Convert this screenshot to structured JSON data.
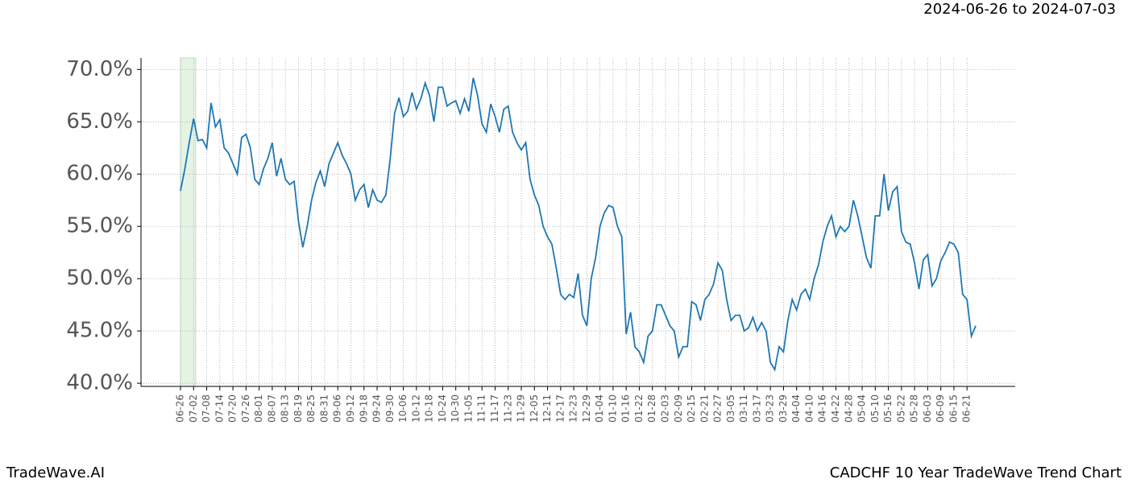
{
  "chart_data": {
    "type": "line",
    "title": "2024-06-26 to 2024-07-03",
    "footer_left": "TradeWave.AI",
    "footer_right": "CADCHF 10 Year TradeWave Trend Chart",
    "categories": [
      "06-26",
      null,
      null,
      "07-02",
      null,
      null,
      "07-08",
      null,
      null,
      "07-14",
      null,
      null,
      "07-20",
      null,
      null,
      "07-26",
      null,
      null,
      "08-01",
      null,
      null,
      "08-07",
      null,
      null,
      "08-13",
      null,
      null,
      "08-19",
      null,
      null,
      "08-25",
      null,
      null,
      "08-31",
      null,
      null,
      "09-06",
      null,
      null,
      "09-12",
      null,
      null,
      "09-18",
      null,
      null,
      "09-24",
      null,
      null,
      "09-30",
      null,
      null,
      "10-06",
      null,
      null,
      "10-12",
      null,
      null,
      "10-18",
      null,
      null,
      "10-24",
      null,
      null,
      "10-30",
      null,
      null,
      "11-05",
      null,
      null,
      "11-11",
      null,
      null,
      "11-17",
      null,
      null,
      "11-23",
      null,
      null,
      "11-29",
      null,
      null,
      "12-05",
      null,
      null,
      "12-11",
      null,
      null,
      "12-17",
      null,
      null,
      "12-23",
      null,
      null,
      "12-29",
      null,
      null,
      "01-04",
      null,
      null,
      "01-10",
      null,
      null,
      "01-16",
      null,
      null,
      "01-22",
      null,
      null,
      "01-28",
      null,
      null,
      "02-03",
      null,
      null,
      "02-09",
      null,
      null,
      "02-15",
      null,
      null,
      "02-21",
      null,
      null,
      "02-27",
      null,
      null,
      "03-05",
      null,
      null,
      "03-11",
      null,
      null,
      "03-17",
      null,
      null,
      "03-23",
      null,
      null,
      "03-29",
      null,
      null,
      "04-04",
      null,
      null,
      "04-10",
      null,
      null,
      "04-16",
      null,
      null,
      "04-22",
      null,
      null,
      "04-28",
      null,
      null,
      "05-04",
      null,
      null,
      "05-10",
      null,
      null,
      "05-16",
      null,
      null,
      "05-22",
      null,
      null,
      "05-28",
      null,
      null,
      "06-03",
      null,
      null,
      "06-09",
      null,
      null,
      "06-15",
      null,
      null,
      "06-21",
      null,
      null
    ],
    "series": [
      {
        "color": "#1f77b4",
        "values": [
          58.4,
          60.5,
          63,
          65.3,
          63.2,
          63.3,
          62.5,
          66.8,
          64.5,
          65.2,
          62.5,
          62,
          61,
          60,
          63.5,
          63.8,
          62.5,
          59.5,
          59,
          60.5,
          61.5,
          63,
          59.8,
          61.5,
          59.5,
          59,
          59.3,
          55.5,
          53,
          55,
          57.5,
          59.2,
          60.3,
          58.8,
          61,
          62,
          63,
          61.8,
          61,
          60,
          57.5,
          58.5,
          59,
          56.8,
          58.5,
          57.5,
          57.3,
          58,
          61.5,
          65.8,
          67.3,
          65.5,
          66,
          67.8,
          66.2,
          67.2,
          68.7,
          67.5,
          65,
          68.3,
          68.3,
          66.5,
          66.8,
          67,
          65.8,
          67.2,
          66,
          69.2,
          67.5,
          64.8,
          64,
          66.7,
          65.5,
          64,
          66.2,
          66.5,
          64,
          63,
          62.3,
          63,
          59.5,
          58,
          57,
          55,
          54,
          53.3,
          51,
          48.5,
          48,
          48.5,
          48.2,
          50.5,
          46.5,
          45.5,
          50,
          52,
          55,
          56.3,
          57,
          56.8,
          55,
          54,
          44.7,
          46.8,
          43.5,
          43,
          42,
          44.5,
          45,
          47.5,
          47.5,
          46.5,
          45.5,
          45,
          42.5,
          43.5,
          43.5,
          47.8,
          47.5,
          46,
          48,
          48.5,
          49.5,
          51.5,
          50.8,
          48,
          46,
          46.5,
          46.5,
          45,
          45.3,
          46.3,
          45,
          45.8,
          45,
          42,
          41.3,
          43.5,
          43,
          46,
          48,
          47,
          48.5,
          49,
          48,
          50,
          51.3,
          53.5,
          55,
          56,
          54,
          55,
          54.5,
          55,
          57.5,
          56,
          54,
          52,
          51,
          56,
          56,
          60,
          56.5,
          58.3,
          58.8,
          54.5,
          53.5,
          53.3,
          51.5,
          49,
          51.8,
          52.3,
          49.3,
          50,
          51.7,
          52.5,
          53.5,
          53.3,
          52.5,
          48.5,
          48,
          44.5,
          45.5
        ]
      }
    ],
    "ylim": [
      39.7,
      71.1
    ],
    "yticks": [
      {
        "value": 40,
        "label": "40.0%"
      },
      {
        "value": 45,
        "label": "45.0%"
      },
      {
        "value": 50,
        "label": "50.0%"
      },
      {
        "value": 55,
        "label": "55.0%"
      },
      {
        "value": 60,
        "label": "60.0%"
      },
      {
        "value": 65,
        "label": "65.0%"
      },
      {
        "value": 70,
        "label": "70.0%"
      }
    ],
    "grid": true
  }
}
